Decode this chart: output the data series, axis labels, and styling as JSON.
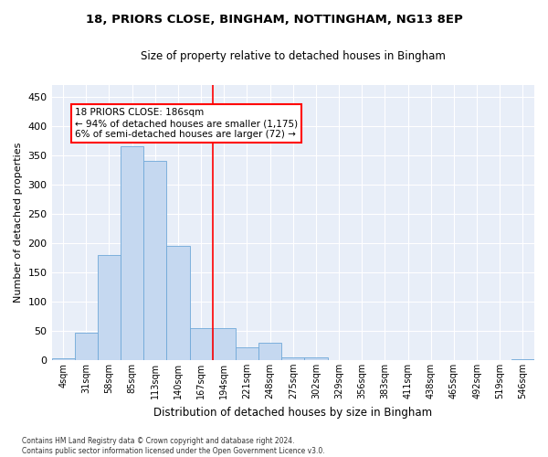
{
  "title1": "18, PRIORS CLOSE, BINGHAM, NOTTINGHAM, NG13 8EP",
  "title2": "Size of property relative to detached houses in Bingham",
  "xlabel": "Distribution of detached houses by size in Bingham",
  "ylabel": "Number of detached properties",
  "annotation_line1": "18 PRIORS CLOSE: 186sqm",
  "annotation_line2": "← 94% of detached houses are smaller (1,175)",
  "annotation_line3": "6% of semi-detached houses are larger (72) →",
  "footer1": "Contains HM Land Registry data © Crown copyright and database right 2024.",
  "footer2": "Contains public sector information licensed under the Open Government Licence v3.0.",
  "bar_labels": [
    "4sqm",
    "31sqm",
    "58sqm",
    "85sqm",
    "113sqm",
    "140sqm",
    "167sqm",
    "194sqm",
    "221sqm",
    "248sqm",
    "275sqm",
    "302sqm",
    "329sqm",
    "356sqm",
    "383sqm",
    "411sqm",
    "438sqm",
    "465sqm",
    "492sqm",
    "519sqm",
    "546sqm"
  ],
  "bar_values": [
    3,
    47,
    180,
    365,
    340,
    195,
    55,
    55,
    22,
    30,
    5,
    5,
    0,
    0,
    0,
    0,
    0,
    0,
    0,
    0,
    2
  ],
  "bar_color": "#C5D8F0",
  "bar_edge_color": "#6FA8D8",
  "vline_x_index": 6.5,
  "vline_color": "red",
  "ylim": [
    0,
    470
  ],
  "yticks": [
    0,
    50,
    100,
    150,
    200,
    250,
    300,
    350,
    400,
    450
  ],
  "background_color": "#E8EEF8",
  "grid_color": "#FFFFFF",
  "annotation_box_facecolor": "#FFFFFF",
  "annotation_box_edgecolor": "red"
}
